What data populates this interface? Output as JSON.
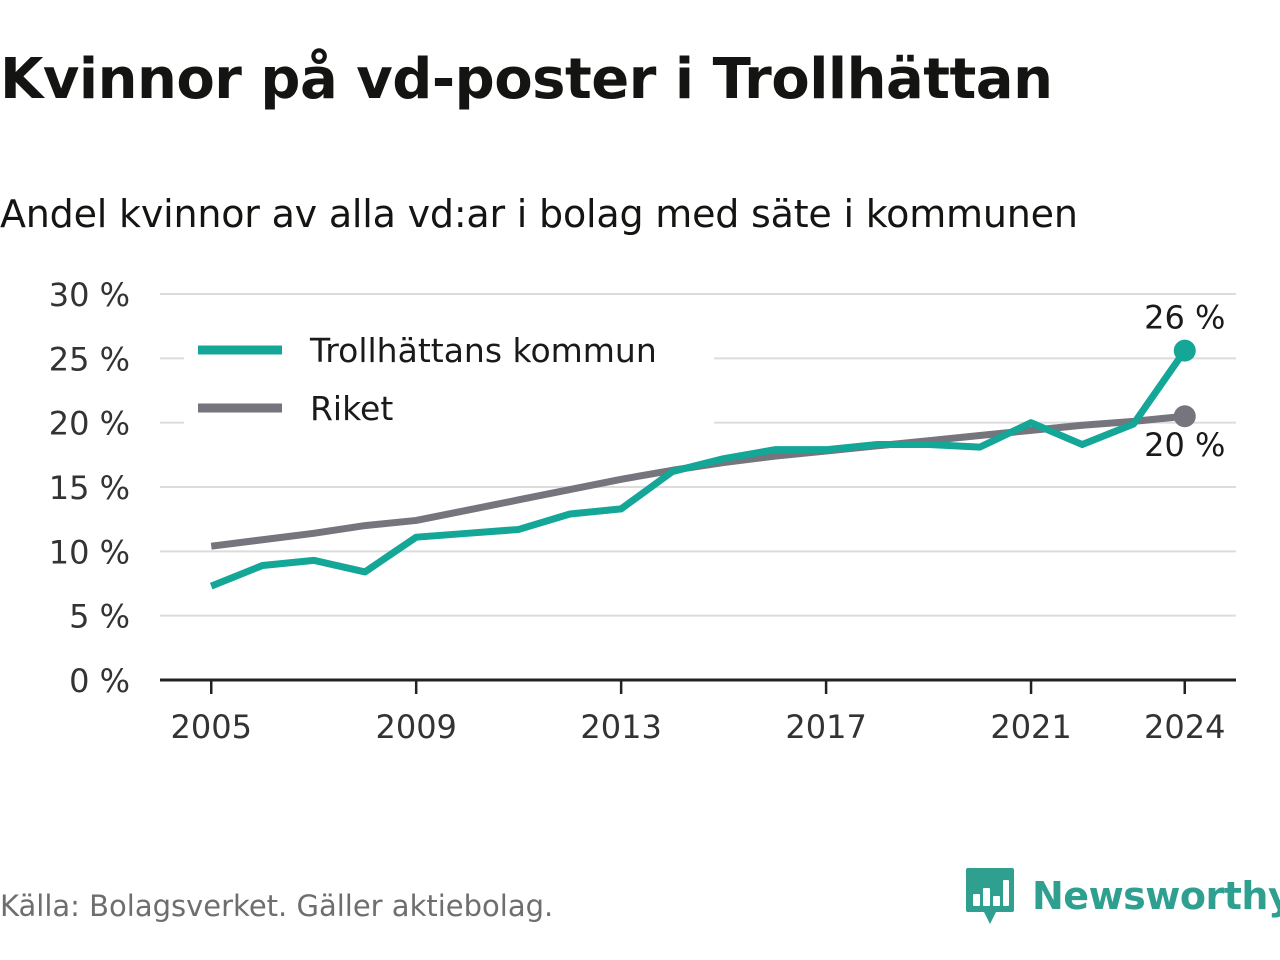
{
  "title": "Kvinnor på vd-poster i Trollhättan",
  "subtitle": "Andel kvinnor av alla vd:ar i bolag med säte i kommunen",
  "source": "Källa: Bolagsverket. Gäller aktiebolag.",
  "brand": {
    "name": "Newsworthy",
    "icon": "bar-chart-speech-bubble-icon",
    "color": "#2f9f8f"
  },
  "chart_data": {
    "type": "line",
    "title": "Kvinnor på vd-poster i Trollhättan",
    "subtitle": "Andel kvinnor av alla vd:ar i bolag med säte i kommunen",
    "xlabel": "",
    "ylabel": "",
    "x": [
      2005,
      2006,
      2007,
      2008,
      2009,
      2010,
      2011,
      2012,
      2013,
      2014,
      2015,
      2016,
      2017,
      2018,
      2019,
      2020,
      2021,
      2022,
      2023,
      2024
    ],
    "xticks": [
      "2005",
      "2009",
      "2013",
      "2017",
      "2021",
      "2024"
    ],
    "ylim": [
      0,
      30
    ],
    "yticks": [
      "0 %",
      "5 %",
      "10 %",
      "15 %",
      "20 %",
      "25 %",
      "30 %"
    ],
    "grid": true,
    "legend_position": "top-left",
    "series": [
      {
        "name": "Trollhättans kommun",
        "color": "#14a697",
        "values": [
          7.3,
          8.9,
          9.3,
          8.4,
          11.1,
          11.4,
          11.7,
          12.9,
          13.3,
          16.2,
          17.2,
          17.9,
          17.9,
          18.3,
          18.3,
          18.1,
          20.0,
          18.3,
          19.9,
          25.6
        ],
        "end_label": "26 %"
      },
      {
        "name": "Riket",
        "color": "#76747c",
        "values": [
          10.4,
          10.9,
          11.4,
          12.0,
          12.4,
          13.2,
          14.0,
          14.8,
          15.6,
          16.3,
          16.9,
          17.4,
          17.8,
          18.2,
          18.6,
          19.0,
          19.4,
          19.8,
          20.1,
          20.5
        ],
        "end_label": "20 %"
      }
    ]
  }
}
